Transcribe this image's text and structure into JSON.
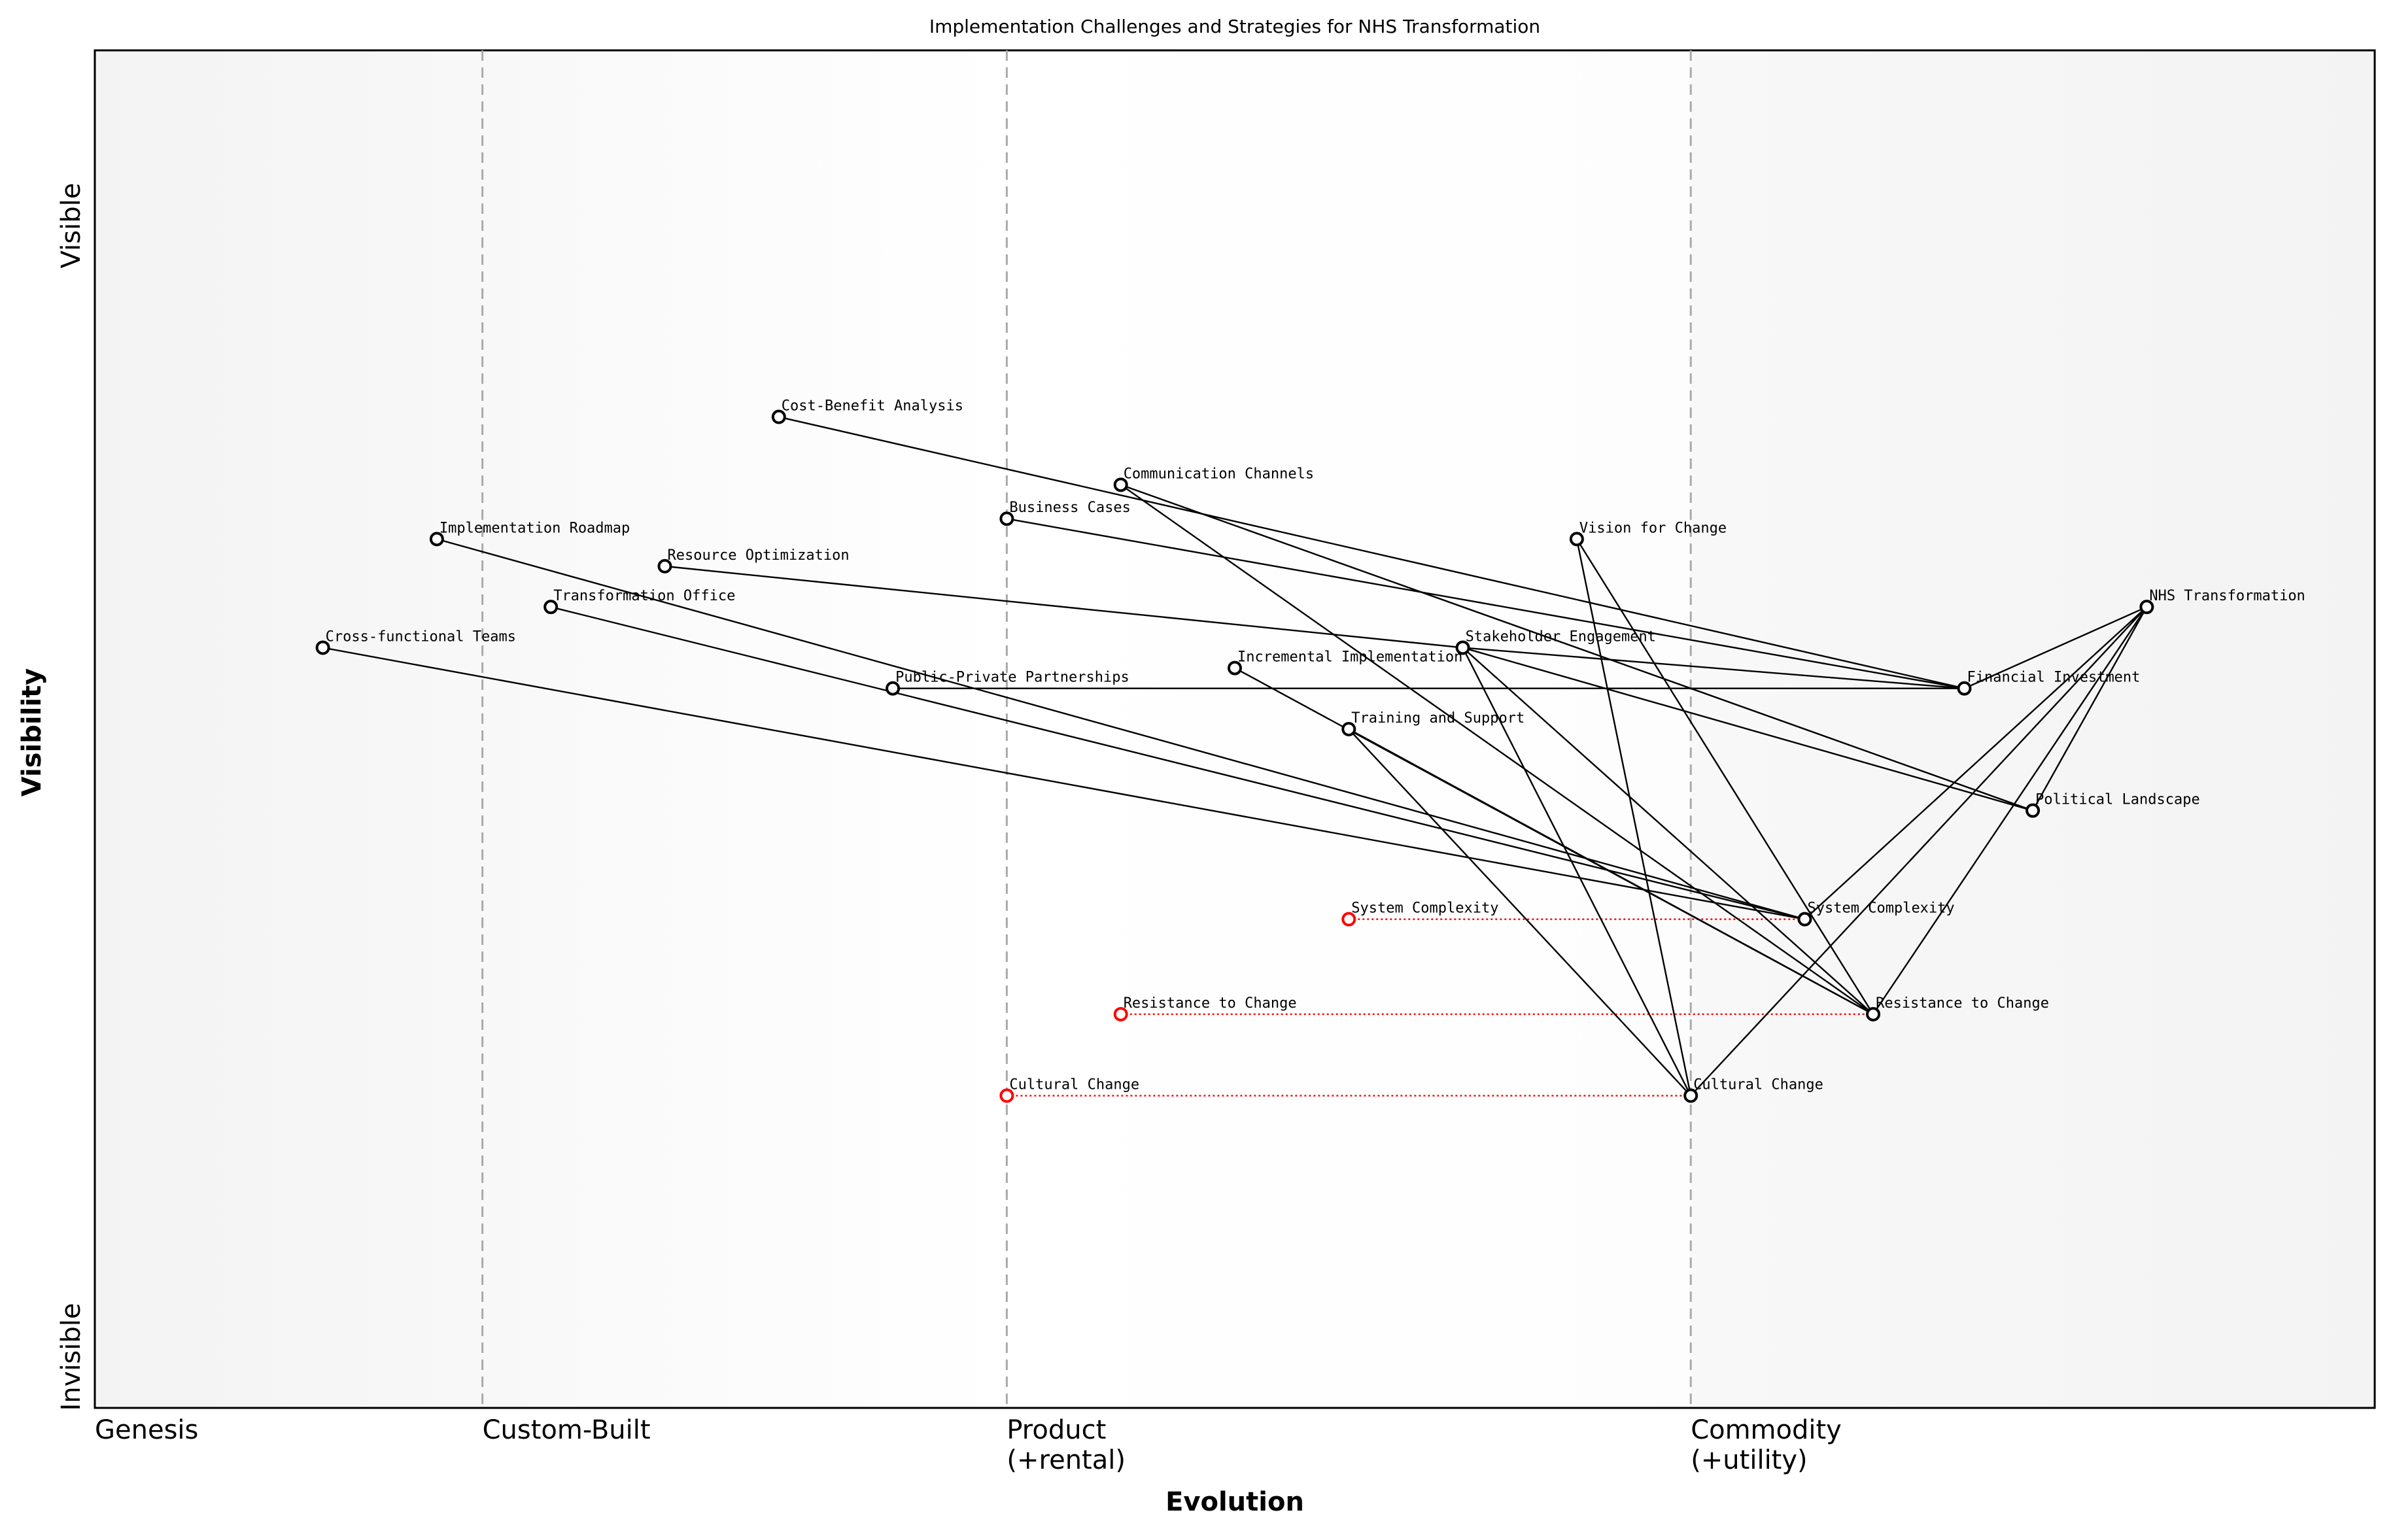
{
  "title": "Implementation Challenges and Strategies for NHS Transformation",
  "axes": {
    "xlabel": "Evolution",
    "ylabel": "Visibility",
    "y_top": "Visible",
    "y_bottom": "Invisible",
    "stages": [
      {
        "label": "Genesis",
        "at": 0.0
      },
      {
        "label": "Custom-Built",
        "at": 0.17
      },
      {
        "label": "Product\n(+rental)",
        "at": 0.4
      },
      {
        "label": "Commodity\n(+utility)",
        "at": 0.7
      }
    ]
  },
  "colors": {
    "node": "#000000",
    "evolve": "#ff0000",
    "divider": "#aaaaaa"
  },
  "components": [
    {
      "id": "nhs",
      "name": "NHS Transformation",
      "evolution": 0.9,
      "visibility": 0.59
    },
    {
      "id": "fin",
      "name": "Financial Investment",
      "evolution": 0.82,
      "visibility": 0.53
    },
    {
      "id": "pol",
      "name": "Political Landscape",
      "evolution": 0.85,
      "visibility": 0.44
    },
    {
      "id": "vis",
      "name": "Vision for Change",
      "evolution": 0.65,
      "visibility": 0.64
    },
    {
      "id": "stk",
      "name": "Stakeholder Engagement",
      "evolution": 0.6,
      "visibility": 0.56
    },
    {
      "id": "com",
      "name": "Communication Channels",
      "evolution": 0.45,
      "visibility": 0.68
    },
    {
      "id": "bus",
      "name": "Business Cases",
      "evolution": 0.4,
      "visibility": 0.655
    },
    {
      "id": "cba",
      "name": "Cost-Benefit Analysis",
      "evolution": 0.3,
      "visibility": 0.73
    },
    {
      "id": "imp",
      "name": "Implementation Roadmap",
      "evolution": 0.15,
      "visibility": 0.64
    },
    {
      "id": "res",
      "name": "Resource Optimization",
      "evolution": 0.25,
      "visibility": 0.62
    },
    {
      "id": "tro",
      "name": "Transformation Office",
      "evolution": 0.2,
      "visibility": 0.59
    },
    {
      "id": "cft",
      "name": "Cross-functional Teams",
      "evolution": 0.1,
      "visibility": 0.56
    },
    {
      "id": "ppp",
      "name": "Public-Private Partnerships",
      "evolution": 0.35,
      "visibility": 0.53
    },
    {
      "id": "inc",
      "name": "Incremental Implementation",
      "evolution": 0.5,
      "visibility": 0.545
    },
    {
      "id": "trn",
      "name": "Training and Support",
      "evolution": 0.55,
      "visibility": 0.5
    },
    {
      "id": "sys",
      "name": "System Complexity",
      "evolution": 0.75,
      "visibility": 0.36
    },
    {
      "id": "rtc",
      "name": "Resistance to Change",
      "evolution": 0.78,
      "visibility": 0.29
    },
    {
      "id": "cul",
      "name": "Cultural Change",
      "evolution": 0.7,
      "visibility": 0.23
    }
  ],
  "evolutions": [
    {
      "name": "System Complexity",
      "from": 0.55,
      "to": "sys"
    },
    {
      "name": "Resistance to Change",
      "from": 0.45,
      "to": "rtc"
    },
    {
      "name": "Cultural Change",
      "from": 0.4,
      "to": "cul"
    }
  ],
  "links": [
    [
      "nhs",
      "fin"
    ],
    [
      "nhs",
      "pol"
    ],
    [
      "nhs",
      "sys"
    ],
    [
      "nhs",
      "rtc"
    ],
    [
      "nhs",
      "cul"
    ],
    [
      "fin",
      "cba"
    ],
    [
      "fin",
      "bus"
    ],
    [
      "fin",
      "ppp"
    ],
    [
      "fin",
      "stk"
    ],
    [
      "pol",
      "stk"
    ],
    [
      "pol",
      "com"
    ],
    [
      "vis",
      "cul"
    ],
    [
      "vis",
      "rtc"
    ],
    [
      "stk",
      "cul"
    ],
    [
      "stk",
      "rtc"
    ],
    [
      "stk",
      "res"
    ],
    [
      "com",
      "rtc"
    ],
    [
      "inc",
      "rtc"
    ],
    [
      "trn",
      "rtc"
    ],
    [
      "trn",
      "cul"
    ],
    [
      "sys",
      "imp"
    ],
    [
      "sys",
      "tro"
    ],
    [
      "sys",
      "cft"
    ]
  ]
}
